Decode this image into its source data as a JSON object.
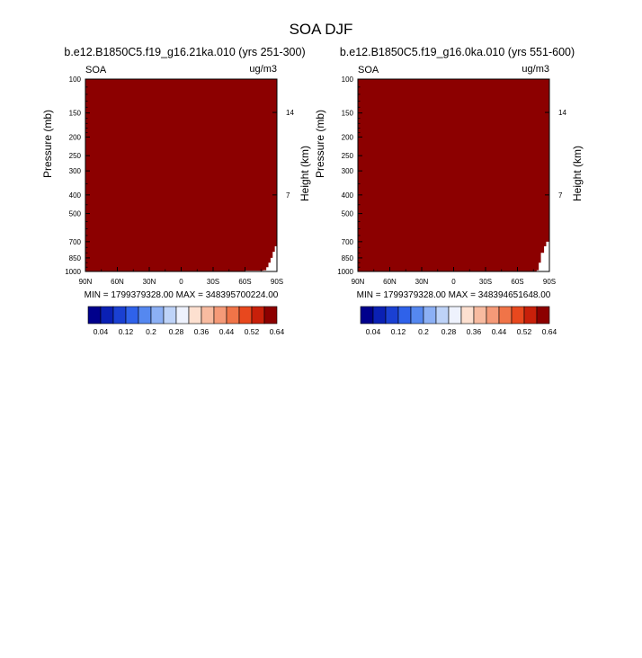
{
  "figure_title": "SOA DJF",
  "chart_data": [
    {
      "type": "heatmap",
      "title": "b.e12.B1850C5.f19_g16.21ka.010 (yrs 251-300)",
      "left_label": "SOA",
      "right_label": "ug/m3",
      "xlabel": "",
      "ylabel": "Pressure (mb)",
      "ylabel_right": "Height (km)",
      "x_ticks": [
        "90N",
        "60N",
        "30N",
        "0",
        "30S",
        "60S",
        "90S"
      ],
      "x_range": [
        90,
        -90
      ],
      "y_ticks": [
        100,
        150,
        200,
        250,
        300,
        400,
        500,
        700,
        850,
        1000
      ],
      "y_range": [
        100,
        1000
      ],
      "y_scale": "log",
      "height_ticks": [
        14,
        7
      ],
      "fill_color": "#8c0000",
      "masked_region": "lower-right (southern high latitudes near surface)",
      "masked_profile": [
        {
          "lat": -60,
          "p": 990
        },
        {
          "lat": -77,
          "p": 985
        },
        {
          "lat": -80,
          "p": 950
        },
        {
          "lat": -82,
          "p": 900
        },
        {
          "lat": -84,
          "p": 850
        },
        {
          "lat": -86,
          "p": 790
        },
        {
          "lat": -88,
          "p": 740
        },
        {
          "lat": -90,
          "p": 700
        }
      ],
      "stats": "MIN = 1799379328.00   MAX = 348395700224.00"
    },
    {
      "type": "heatmap",
      "title": "b.e12.B1850C5.f19_g16.0ka.010 (yrs 551-600)",
      "left_label": "SOA",
      "right_label": "ug/m3",
      "xlabel": "",
      "ylabel": "Pressure (mb)",
      "ylabel_right": "Height (km)",
      "x_ticks": [
        "90N",
        "60N",
        "30N",
        "0",
        "30S",
        "60S",
        "90S"
      ],
      "x_range": [
        90,
        -90
      ],
      "y_ticks": [
        100,
        150,
        200,
        250,
        300,
        400,
        500,
        700,
        850,
        1000
      ],
      "y_range": [
        100,
        1000
      ],
      "y_scale": "log",
      "height_ticks": [
        14,
        7
      ],
      "fill_color": "#8c0000",
      "masked_region": "lower-right (southern high latitudes near surface)",
      "masked_profile": [
        {
          "lat": -55,
          "p": 995
        },
        {
          "lat": -78,
          "p": 985
        },
        {
          "lat": -80,
          "p": 900
        },
        {
          "lat": -82,
          "p": 800
        },
        {
          "lat": -85,
          "p": 740
        },
        {
          "lat": -87,
          "p": 700
        }
      ],
      "stats": "MIN = 1799379328.00   MAX = 348394651648.00"
    }
  ],
  "colorbar": {
    "colors": [
      "#00008c",
      "#0a20b4",
      "#1a40d2",
      "#2f62ea",
      "#5588f0",
      "#8cb0f5",
      "#bed3f8",
      "#eef2fd",
      "#fde0d0",
      "#f8bba0",
      "#f59a78",
      "#f07448",
      "#e8481e",
      "#c8200a",
      "#8c0000"
    ],
    "labels": [
      "0.04",
      "0.12",
      "0.2",
      "0.28",
      "0.36",
      "0.44",
      "0.52",
      "0.64"
    ]
  }
}
